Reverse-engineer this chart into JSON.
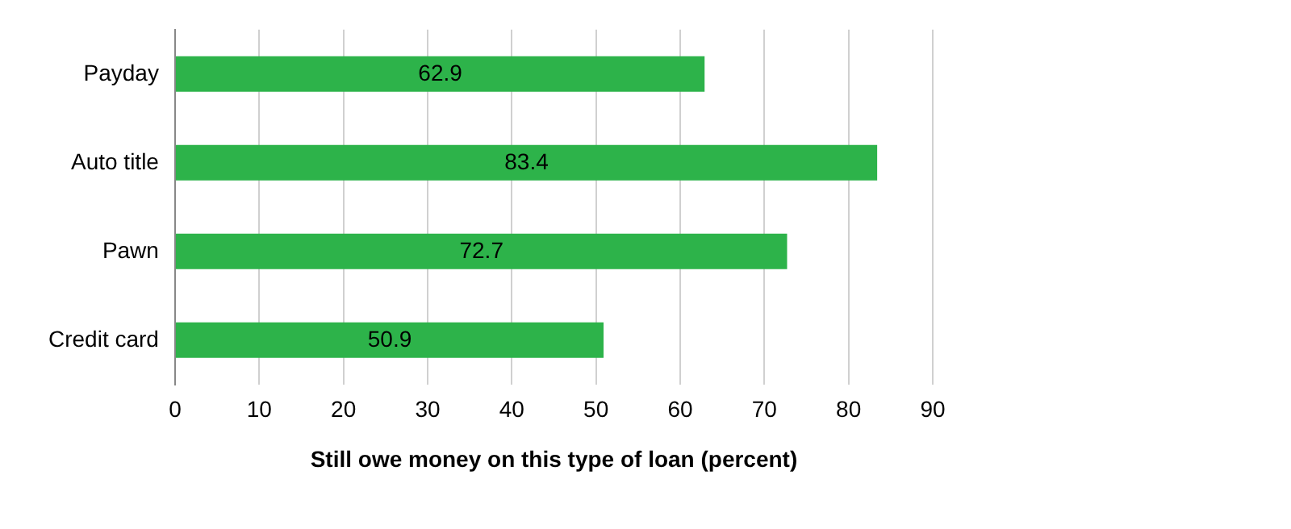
{
  "chart_data": {
    "type": "bar",
    "orientation": "horizontal",
    "xlabel": "Still owe money on this type of loan (percent)",
    "categories": [
      "Payday",
      "Auto title",
      "Pawn",
      "Credit card"
    ],
    "values": [
      62.9,
      83.4,
      72.7,
      50.9
    ],
    "color": "#2db34a",
    "xlim": [
      0,
      90
    ],
    "xticks": [
      0,
      10,
      20,
      30,
      40,
      50,
      60,
      70,
      80,
      90
    ],
    "grid": "x",
    "data_labels": true,
    "legend": false
  }
}
